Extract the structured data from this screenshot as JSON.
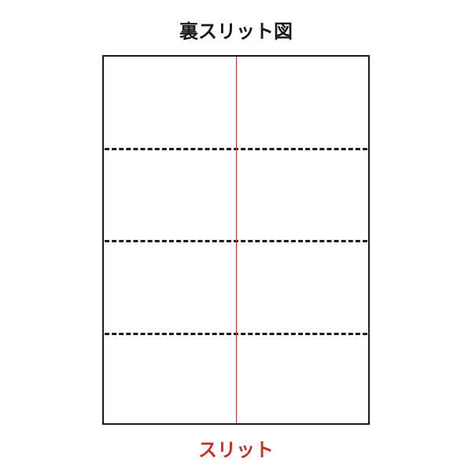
{
  "title": "裏スリット図",
  "bottom_label": "スリット",
  "diagram": {
    "type": "sheet-slit-diagram",
    "background_color": "#ffffff",
    "border_color": "#1a1a1a",
    "border_width": 2,
    "dash_color": "#1a1a1a",
    "dash_width": 3,
    "slit_color": "#c5302b",
    "slit_x_percent": 50,
    "rows": 4,
    "dash_positions_percent": [
      25,
      50,
      75
    ]
  },
  "colors": {
    "title": "#1a1a1a",
    "bottom_label": "#c5302b"
  },
  "fontsize": {
    "title": 24,
    "bottom_label": 24
  }
}
